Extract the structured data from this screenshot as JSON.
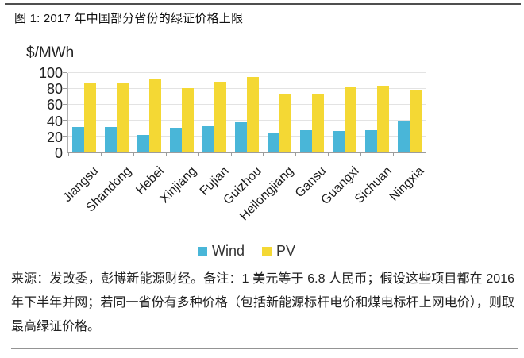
{
  "figure": {
    "title": "图 1: 2017 年中国部分省份的绿证价格上限"
  },
  "chart_data": {
    "type": "bar",
    "title": "2017 年中国部分省份的绿证价格上限",
    "xlabel": "",
    "ylabel": "$/MWh",
    "ylim": [
      0,
      100
    ],
    "y_ticks": [
      0,
      20,
      40,
      60,
      80,
      100
    ],
    "grid": true,
    "legend_position": "bottom",
    "categories": [
      "Jiangsu",
      "Shandong",
      "Hebei",
      "Xinjiang",
      "Fujian",
      "Guizhou",
      "Heilongjiang",
      "Gansu",
      "Guangxi",
      "Sichuan",
      "Ningxia"
    ],
    "series": [
      {
        "name": "Wind",
        "color": "#49b6d8",
        "values": [
          32,
          32,
          22,
          31,
          33,
          38,
          24,
          28,
          27,
          28,
          40
        ]
      },
      {
        "name": "PV",
        "color": "#f4d834",
        "values": [
          88,
          88,
          93,
          81,
          89,
          95,
          74,
          73,
          82,
          84,
          79
        ]
      }
    ]
  },
  "footer": {
    "text": "来源：发改委，彭博新能源财经。备注：1 美元等于 6.8 人民币；假设这些项目都在 2016 年下半年并网；若同一省份有多种价格（包括新能源标杆电价和煤电标杆上网电价），则取最高绿证价格。"
  },
  "colors": {
    "wind": "#49b6d8",
    "pv": "#f4d834",
    "gridline": "#e3e3e3",
    "axis": "#9c9c9c",
    "rule": "#4f4f4f"
  }
}
